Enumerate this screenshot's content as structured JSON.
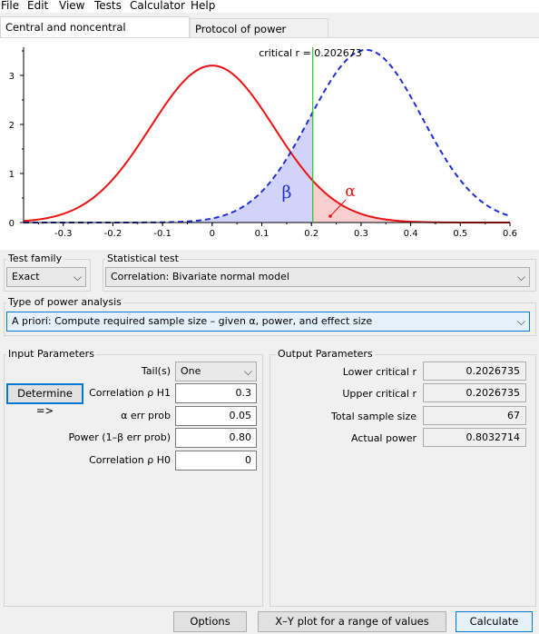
{
  "menu": [
    "File",
    "Edit",
    "View",
    "Tests",
    "Calculator",
    "Help"
  ],
  "tabs": {
    "distributions": "Central and noncentral distributions",
    "protocol": "Protocol of power analyses"
  },
  "plot": {
    "critical_label": "critical r = 0.202673",
    "beta_symbol": "β",
    "alpha_symbol": "α",
    "colors": {
      "h0": "#ee1111",
      "h1": "#1f2fd6",
      "critical": "#22cc22",
      "beta_fill": "#c9cbf8",
      "alpha_fill": "#f8c6c6"
    }
  },
  "chart_data": {
    "type": "line",
    "critical_value": 0.202673,
    "xlim": [
      -0.38,
      0.6
    ],
    "ylim": [
      0,
      3.5
    ],
    "x_ticks": [
      "-0.3",
      "-0.2",
      "-0.1",
      "0",
      "0.1",
      "0.2",
      "0.3",
      "0.4",
      "0.5",
      "0.6"
    ],
    "x_tick_values": [
      -0.3,
      -0.2,
      -0.1,
      0,
      0.1,
      0.2,
      0.3,
      0.4,
      0.5,
      0.6
    ],
    "y_ticks": [
      "0",
      "1",
      "2",
      "3"
    ],
    "y_tick_values": [
      0,
      1,
      2,
      3
    ],
    "series": [
      {
        "style": "solid",
        "color": "#ee1111",
        "mean": 0.0,
        "peak": 3.2
      },
      {
        "style": "dashed",
        "color": "#1f2fd6",
        "mean": 0.31,
        "peak": 3.52
      }
    ]
  },
  "test_family": {
    "label": "Test family",
    "value": "Exact"
  },
  "statistical_test": {
    "label": "Statistical test",
    "value": "Correlation: Bivariate normal model"
  },
  "power_analysis": {
    "label": "Type of power analysis",
    "value": "A priori: Compute required sample size – given α, power, and effect size"
  },
  "input": {
    "title": "Input Parameters",
    "determine": "Determine =>",
    "tails_label": "Tail(s)",
    "tails_value": "One",
    "rows": [
      {
        "label": "Correlation ρ H1",
        "value": "0.3"
      },
      {
        "label": "α err prob",
        "value": "0.05"
      },
      {
        "label": "Power (1–β err prob)",
        "value": "0.80"
      },
      {
        "label": "Correlation ρ H0",
        "value": "0"
      }
    ]
  },
  "output": {
    "title": "Output Parameters",
    "rows": [
      {
        "label": "Lower critical r",
        "value": "0.2026735"
      },
      {
        "label": "Upper critical r",
        "value": "0.2026735"
      },
      {
        "label": "Total sample size",
        "value": "67"
      },
      {
        "label": "Actual power",
        "value": "0.8032714"
      }
    ]
  },
  "buttons": {
    "options": "Options",
    "xy_plot": "X–Y plot for a range of values",
    "calculate": "Calculate"
  }
}
